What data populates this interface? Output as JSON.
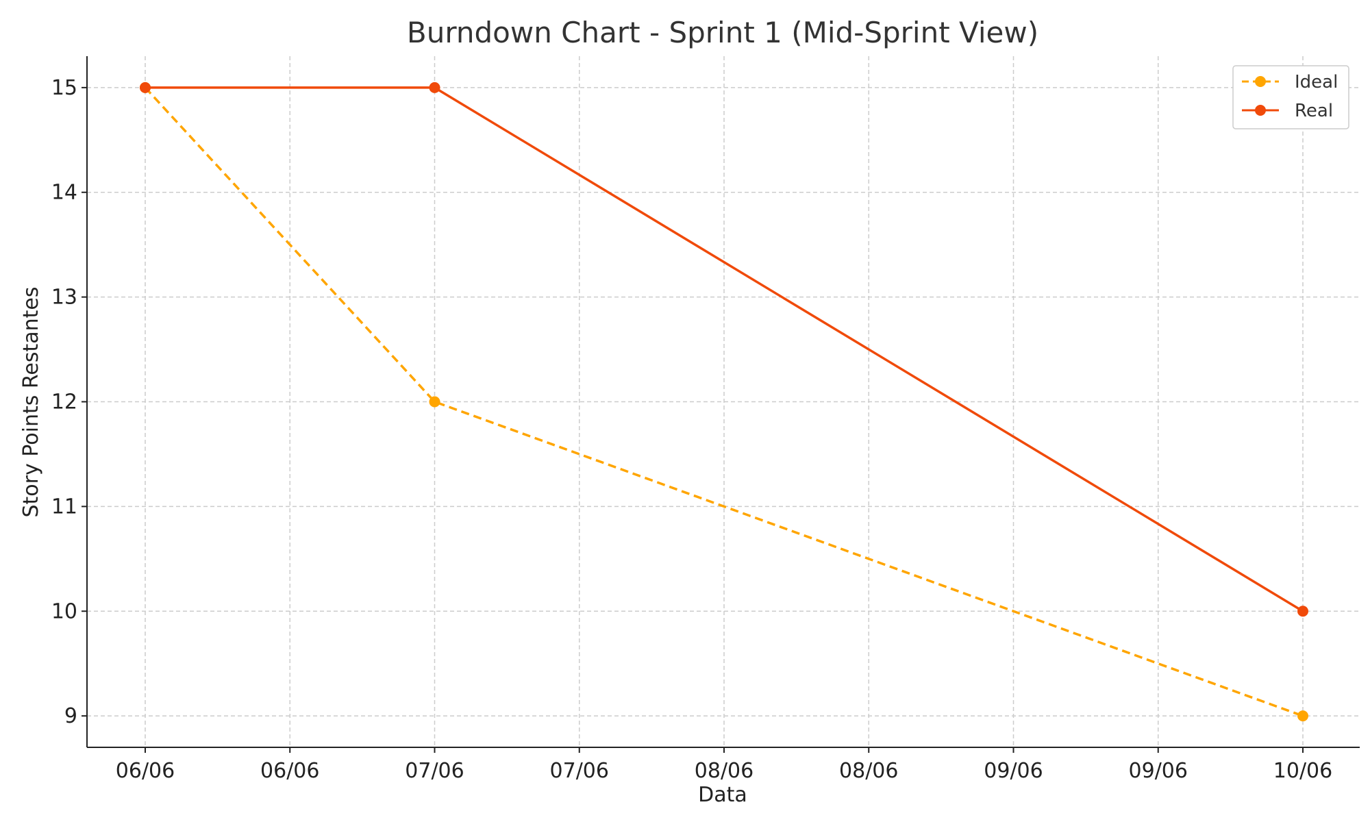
{
  "chart_data": {
    "type": "line",
    "title": "Burndown Chart - Sprint 1 (Mid-Sprint View)",
    "xlabel": "Data",
    "ylabel": "Story Points Restantes",
    "x_tick_labels": [
      "06/06",
      "06/06",
      "07/06",
      "07/06",
      "08/06",
      "08/06",
      "09/06",
      "09/06",
      "10/06"
    ],
    "y_ticks": [
      9,
      10,
      11,
      12,
      13,
      14,
      15
    ],
    "ylim": [
      8.7,
      15.3
    ],
    "grid": true,
    "legend_position": "top-right",
    "series": [
      {
        "name": "Ideal",
        "color": "#FFA500",
        "style": "dashed",
        "marker": "circle",
        "x": [
          "06/06",
          "07/06",
          "10/06"
        ],
        "y": [
          15,
          12,
          9
        ]
      },
      {
        "name": "Real",
        "color": "#F04A0A",
        "style": "solid",
        "marker": "circle",
        "x": [
          "06/06",
          "07/06",
          "10/06"
        ],
        "y": [
          15,
          15,
          10
        ]
      }
    ]
  }
}
